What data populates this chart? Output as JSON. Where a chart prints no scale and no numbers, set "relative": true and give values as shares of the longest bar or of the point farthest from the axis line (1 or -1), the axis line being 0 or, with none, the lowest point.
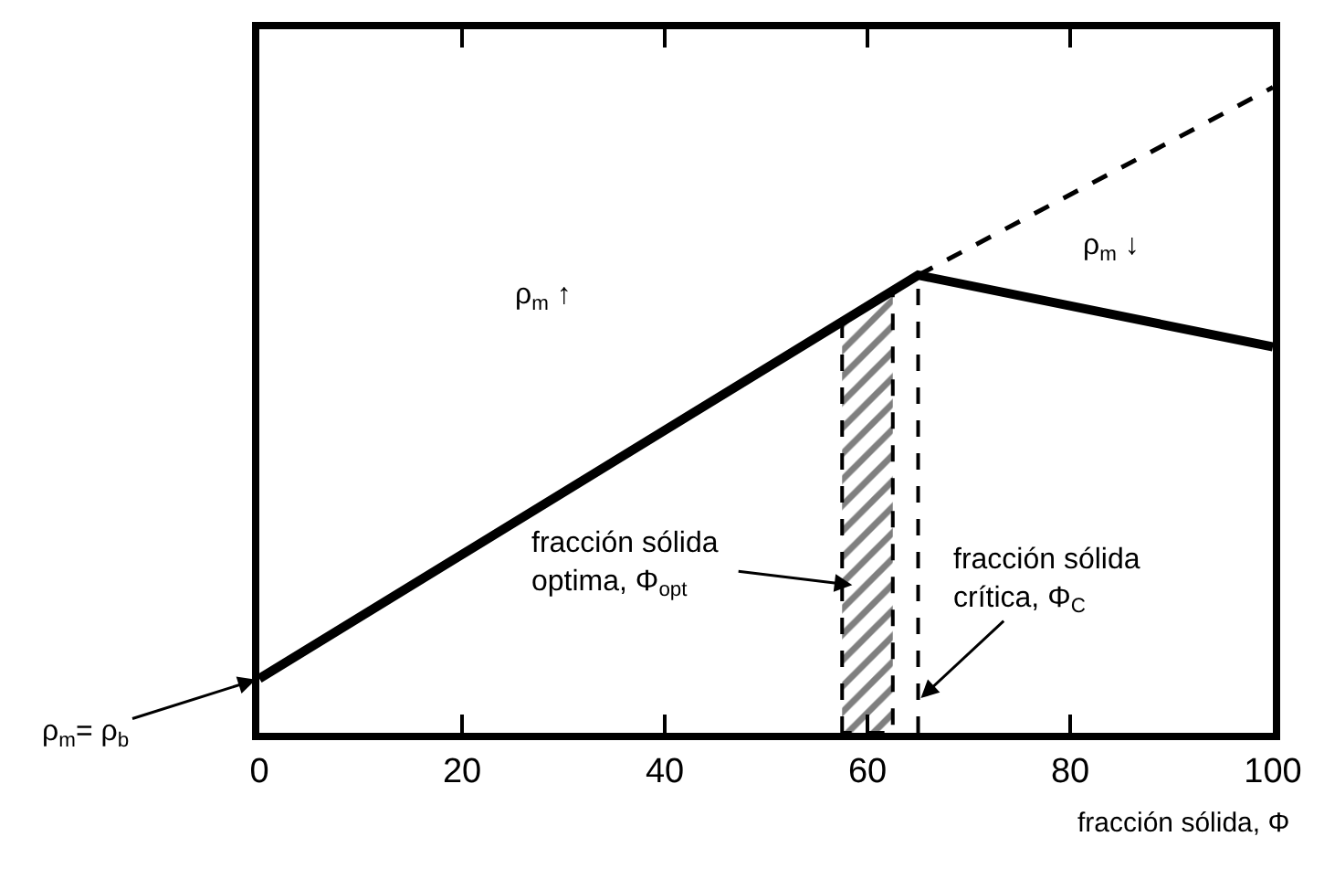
{
  "chart_data": {
    "type": "line",
    "relative": true,
    "xlabel": "fracción sólida, Φ",
    "series": [
      {
        "color": "#000000",
        "x": [
          0,
          65,
          100
        ],
        "values": [
          0.084,
          0.709,
          0.598
        ],
        "line_style": "solid"
      },
      {
        "color": "#000000",
        "x": [
          65,
          100
        ],
        "values": [
          0.709,
          1.0
        ],
        "line_style": "dashed"
      }
    ],
    "xlim": [
      0,
      100
    ],
    "xticks": [
      0,
      20,
      40,
      60,
      80,
      100
    ],
    "tick_labels": "x",
    "marker": "none",
    "bands": [
      {
        "axis": "x",
        "from": 57.5,
        "to": 62.5,
        "color": "#000000"
      }
    ],
    "ref_lines": [
      {
        "axis": "x",
        "value": 65,
        "color": "#000000",
        "line_style": "dashed"
      }
    ],
    "annotations": [
      "ρ$_{m}$ ↑",
      "ρ$_{m}$ ↓",
      {
        "text": "ρ$_{m}$= ρ$_{b}$",
        "x": 0,
        "y": 0.084
      },
      "fracción sólida\noptima, Φ$_{opt}$",
      {
        "text": "fracción sólida\ncrítica, Φ$_{C}$",
        "x": 65,
        "y": 0.05
      }
    ]
  }
}
